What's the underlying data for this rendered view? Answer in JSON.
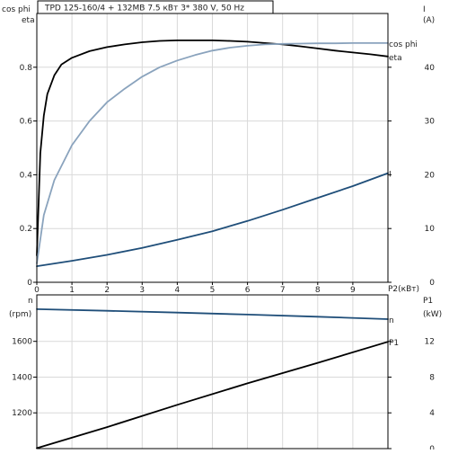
{
  "title": "TPD 125-160/4 + 132MB    7.5 кВт   3* 380 V, 50 Hz",
  "chart_data": [
    {
      "type": "line",
      "panel": "top",
      "x_label": "P2(кВт)",
      "xlim": [
        0,
        10
      ],
      "x_ticks": [
        0,
        1,
        2,
        3,
        4,
        5,
        6,
        7,
        8,
        9
      ],
      "y_left_label_1": "cos phi",
      "y_left_label_2": "eta",
      "y_left_lim": [
        0,
        1.0
      ],
      "y_left_ticks": [
        0,
        0.2,
        0.4,
        0.6,
        0.8
      ],
      "y_right_label_1": "I",
      "y_right_label_2": "(A)",
      "y_right_lim": [
        0,
        50
      ],
      "y_right_ticks": [
        0,
        10,
        20,
        30,
        40
      ],
      "grid": true,
      "series": [
        {
          "name": "eta",
          "axis": "left",
          "color": "#000000",
          "points": [
            [
              0,
              0.1
            ],
            [
              0.1,
              0.48
            ],
            [
              0.2,
              0.62
            ],
            [
              0.3,
              0.7
            ],
            [
              0.5,
              0.77
            ],
            [
              0.7,
              0.81
            ],
            [
              1,
              0.835
            ],
            [
              1.5,
              0.86
            ],
            [
              2,
              0.875
            ],
            [
              2.5,
              0.885
            ],
            [
              3,
              0.893
            ],
            [
              3.5,
              0.898
            ],
            [
              4,
              0.9
            ],
            [
              4.5,
              0.9
            ],
            [
              5,
              0.9
            ],
            [
              5.5,
              0.898
            ],
            [
              6,
              0.895
            ],
            [
              6.5,
              0.89
            ],
            [
              7,
              0.885
            ],
            [
              7.5,
              0.878
            ],
            [
              8,
              0.87
            ],
            [
              8.5,
              0.862
            ],
            [
              9,
              0.855
            ],
            [
              9.5,
              0.848
            ],
            [
              10,
              0.84
            ]
          ]
        },
        {
          "name": "cos phi",
          "axis": "left",
          "color": "#8aa3bd",
          "points": [
            [
              0,
              0.07
            ],
            [
              0.2,
              0.25
            ],
            [
              0.5,
              0.38
            ],
            [
              1,
              0.51
            ],
            [
              1.5,
              0.6
            ],
            [
              2,
              0.67
            ],
            [
              2.5,
              0.72
            ],
            [
              3,
              0.765
            ],
            [
              3.5,
              0.8
            ],
            [
              4,
              0.825
            ],
            [
              4.5,
              0.845
            ],
            [
              5,
              0.862
            ],
            [
              5.5,
              0.873
            ],
            [
              6,
              0.88
            ],
            [
              6.5,
              0.885
            ],
            [
              7,
              0.887
            ],
            [
              7.5,
              0.888
            ],
            [
              8,
              0.889
            ],
            [
              8.5,
              0.889
            ],
            [
              9,
              0.89
            ],
            [
              9.5,
              0.89
            ],
            [
              10,
              0.89
            ]
          ]
        },
        {
          "name": "I",
          "axis": "right",
          "color": "#1f4e79",
          "points": [
            [
              0,
              3
            ],
            [
              1,
              4
            ],
            [
              2,
              5.1
            ],
            [
              3,
              6.4
            ],
            [
              4,
              7.9
            ],
            [
              5,
              9.5
            ],
            [
              6,
              11.4
            ],
            [
              7,
              13.5
            ],
            [
              8,
              15.7
            ],
            [
              9,
              17.9
            ],
            [
              10,
              20.3
            ]
          ]
        }
      ]
    },
    {
      "type": "line",
      "panel": "bottom",
      "x_label": "",
      "xlim": [
        0,
        10
      ],
      "y_left_label_1": "n",
      "y_left_label_2": "(rpm)",
      "y_left_lim": [
        1000,
        1860
      ],
      "y_left_ticks": [
        1200,
        1400,
        1600
      ],
      "y_right_label_1": "P1",
      "y_right_label_2": "(kW)",
      "y_right_lim": [
        0,
        17.2
      ],
      "y_right_ticks": [
        0,
        4,
        8,
        12
      ],
      "grid": true,
      "series": [
        {
          "name": "n",
          "axis": "left",
          "color": "#1f4e79",
          "points": [
            [
              0,
              1780
            ],
            [
              2,
              1771
            ],
            [
              4,
              1761
            ],
            [
              6,
              1750
            ],
            [
              8,
              1738
            ],
            [
              10,
              1724
            ]
          ]
        },
        {
          "name": "P1",
          "axis": "right",
          "color": "#000000",
          "points": [
            [
              0,
              0.05
            ],
            [
              2,
              2.4
            ],
            [
              4,
              4.9
            ],
            [
              6,
              7.3
            ],
            [
              8,
              9.6
            ],
            [
              10,
              11.95
            ]
          ]
        }
      ]
    }
  ]
}
